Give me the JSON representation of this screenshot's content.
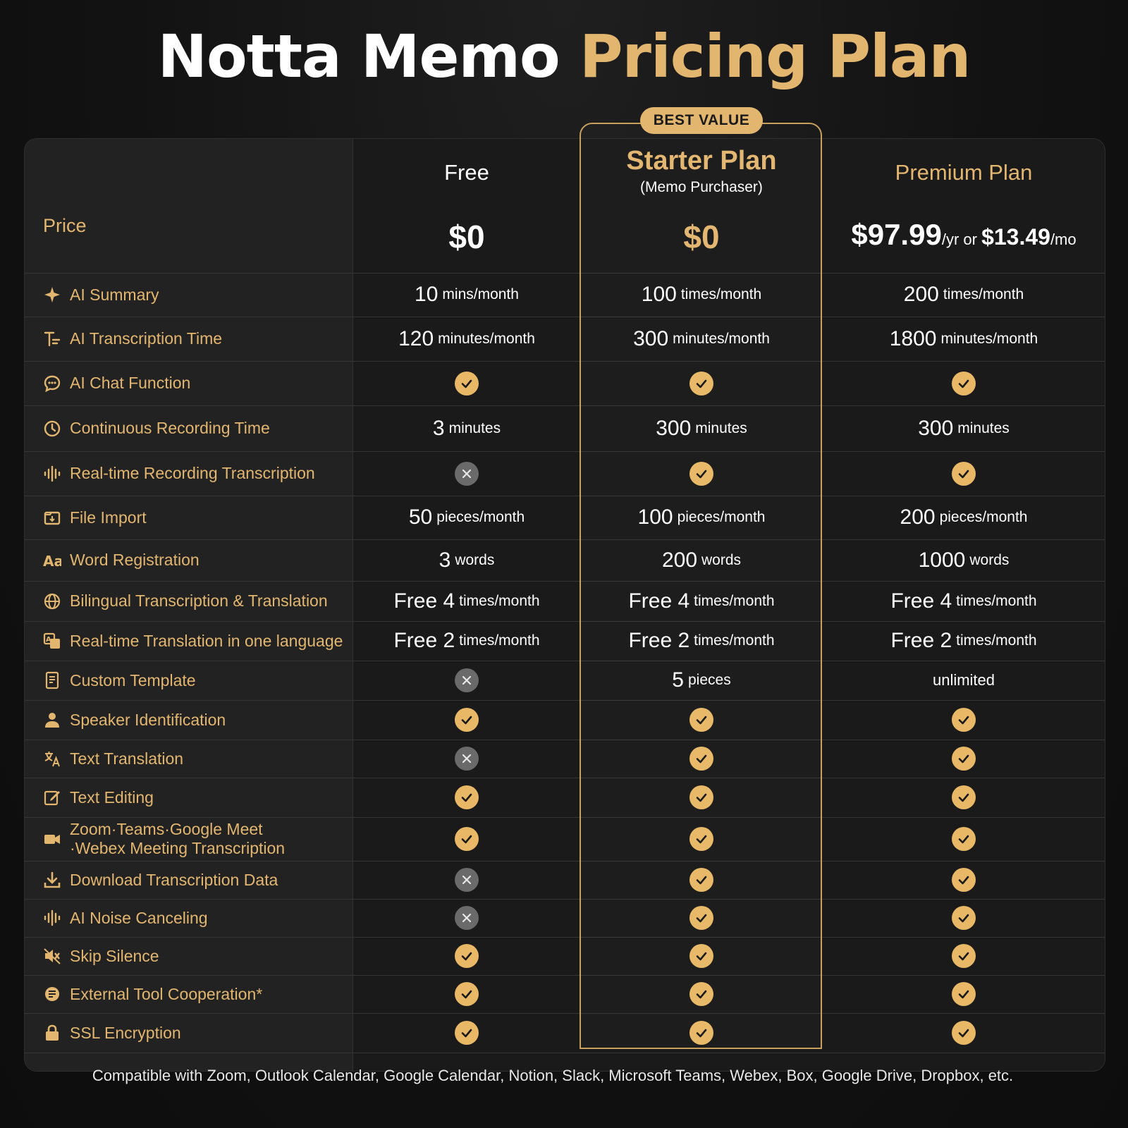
{
  "title": {
    "part1": "Notta Memo",
    "part2": "Pricing Plan"
  },
  "badge": "BEST VALUE",
  "price_label": "Price",
  "plans": [
    {
      "name": "Free",
      "sub": "",
      "price": "$0",
      "price_suffix": ""
    },
    {
      "name": "Starter Plan",
      "sub": "(Memo Purchaser)",
      "price": "$0",
      "price_suffix": ""
    },
    {
      "name": "Premium Plan",
      "sub": "",
      "price": "$97.99",
      "price_suffix1": "/yr or ",
      "price2": "$13.49",
      "price_suffix2": "/mo"
    }
  ],
  "features": [
    {
      "label": "AI Summary",
      "icon": "sparkle-icon",
      "values": [
        {
          "type": "num",
          "num": "10",
          "unit": "mins/month"
        },
        {
          "type": "num",
          "num": "100",
          "unit": "times/month"
        },
        {
          "type": "num",
          "num": "200",
          "unit": "times/month"
        }
      ]
    },
    {
      "label": "AI Transcription Time",
      "icon": "text-transcription-icon",
      "values": [
        {
          "type": "num",
          "num": "120",
          "unit": "minutes/month"
        },
        {
          "type": "num",
          "num": "300",
          "unit": "minutes/month"
        },
        {
          "type": "num",
          "num": "1800",
          "unit": "minutes/month"
        }
      ]
    },
    {
      "label": "AI Chat Function",
      "icon": "chat-bubble-icon",
      "values": [
        {
          "type": "check"
        },
        {
          "type": "check"
        },
        {
          "type": "check"
        }
      ]
    },
    {
      "label": "Continuous Recording Time",
      "icon": "clock-icon",
      "values": [
        {
          "type": "num",
          "num": "3",
          "unit": "minutes"
        },
        {
          "type": "num",
          "num": "300",
          "unit": "minutes"
        },
        {
          "type": "num",
          "num": "300",
          "unit": "minutes"
        }
      ]
    },
    {
      "label": "Real-time Recording Transcription",
      "icon": "waveform-icon",
      "values": [
        {
          "type": "cross"
        },
        {
          "type": "check"
        },
        {
          "type": "check"
        }
      ]
    },
    {
      "label": "File Import",
      "icon": "file-import-icon",
      "values": [
        {
          "type": "num",
          "num": "50",
          "unit": "pieces/month"
        },
        {
          "type": "num",
          "num": "100",
          "unit": "pieces/month"
        },
        {
          "type": "num",
          "num": "200",
          "unit": "pieces/month"
        }
      ]
    },
    {
      "label": "Word Registration",
      "icon": "font-aa-icon",
      "values": [
        {
          "type": "num",
          "num": "3",
          "unit": "words"
        },
        {
          "type": "num",
          "num": "200",
          "unit": "words"
        },
        {
          "type": "num",
          "num": "1000",
          "unit": "words"
        }
      ]
    },
    {
      "label": "Bilingual Transcription & Translation",
      "icon": "globe-icon",
      "values": [
        {
          "type": "num",
          "num": "Free 4",
          "unit": "times/month"
        },
        {
          "type": "num",
          "num": "Free 4",
          "unit": "times/month"
        },
        {
          "type": "num",
          "num": "Free 4",
          "unit": "times/month"
        }
      ]
    },
    {
      "label": "Real-time Translation in one language",
      "icon": "translate-icon",
      "values": [
        {
          "type": "num",
          "num": "Free 2",
          "unit": "times/month"
        },
        {
          "type": "num",
          "num": "Free 2",
          "unit": "times/month"
        },
        {
          "type": "num",
          "num": "Free 2",
          "unit": "times/month"
        }
      ]
    },
    {
      "label": "Custom Template",
      "icon": "template-doc-icon",
      "values": [
        {
          "type": "cross"
        },
        {
          "type": "num",
          "num": "5",
          "unit": "pieces"
        },
        {
          "type": "text",
          "text": "unlimited"
        }
      ]
    },
    {
      "label": "Speaker Identification",
      "icon": "person-icon",
      "values": [
        {
          "type": "check"
        },
        {
          "type": "check"
        },
        {
          "type": "check"
        }
      ]
    },
    {
      "label": "Text Translation",
      "icon": "text-translate-icon",
      "values": [
        {
          "type": "cross"
        },
        {
          "type": "check"
        },
        {
          "type": "check"
        }
      ]
    },
    {
      "label": "Text Editing",
      "icon": "edit-icon",
      "values": [
        {
          "type": "check"
        },
        {
          "type": "check"
        },
        {
          "type": "check"
        }
      ]
    },
    {
      "label": "Zoom·Teams·Google Meet",
      "label2": "·Webex Meeting Transcription",
      "icon": "video-camera-icon",
      "values": [
        {
          "type": "check"
        },
        {
          "type": "check"
        },
        {
          "type": "check"
        }
      ]
    },
    {
      "label": "Download Transcription Data",
      "icon": "download-icon",
      "values": [
        {
          "type": "cross"
        },
        {
          "type": "check"
        },
        {
          "type": "check"
        }
      ]
    },
    {
      "label": "AI Noise Canceling",
      "icon": "waveform-icon",
      "values": [
        {
          "type": "cross"
        },
        {
          "type": "check"
        },
        {
          "type": "check"
        }
      ]
    },
    {
      "label": "Skip Silence",
      "icon": "mute-icon",
      "values": [
        {
          "type": "check"
        },
        {
          "type": "check"
        },
        {
          "type": "check"
        }
      ]
    },
    {
      "label": "External Tool Cooperation*",
      "icon": "integration-icon",
      "values": [
        {
          "type": "check"
        },
        {
          "type": "check"
        },
        {
          "type": "check"
        }
      ]
    },
    {
      "label": "SSL Encryption",
      "icon": "lock-icon",
      "values": [
        {
          "type": "check"
        },
        {
          "type": "check"
        },
        {
          "type": "check"
        }
      ]
    }
  ],
  "footer": "Compatible with Zoom, Outlook Calendar, Google Calendar, Notion, Slack, Microsoft Teams, Webex, Box, Google Drive, Dropbox, etc.",
  "colors": {
    "accent": "#e3b670",
    "check": "#e8b867",
    "cross": "#6a6a6a",
    "background": "#121212"
  }
}
